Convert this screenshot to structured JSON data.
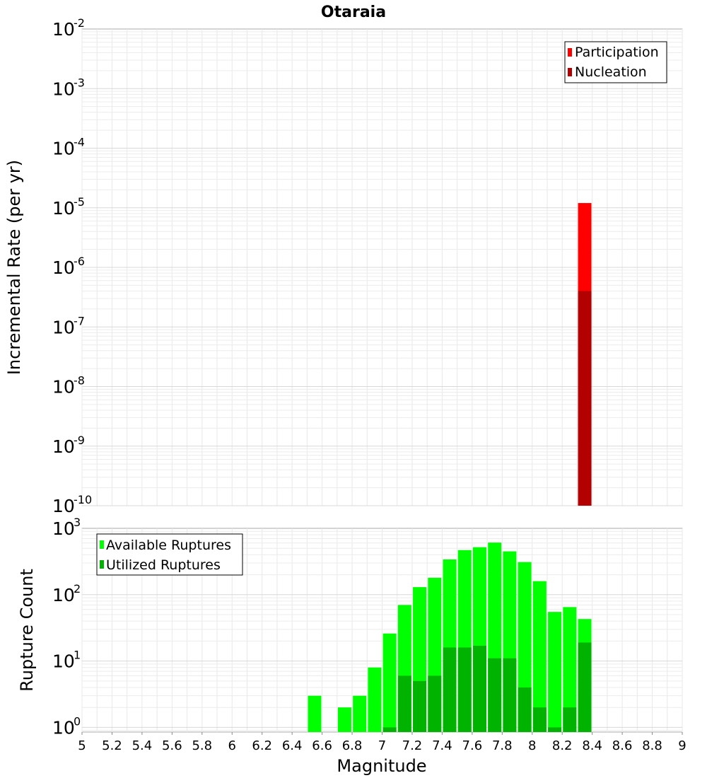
{
  "title": "Otaraia",
  "xlabel": "Magnitude",
  "x_ticks": [
    "5",
    "5.2",
    "5.4",
    "5.6",
    "5.8",
    "6",
    "6.2",
    "6.4",
    "6.6",
    "6.8",
    "7",
    "7.2",
    "7.4",
    "7.6",
    "7.8",
    "8",
    "8.2",
    "8.4",
    "8.6",
    "8.8",
    "9"
  ],
  "colors": {
    "participation": "#ff0000",
    "nucleation": "#b30000",
    "available": "#00ff00",
    "utilized": "#00b300"
  },
  "chart_data": [
    {
      "type": "bar",
      "scale": "log",
      "ylabel": "Incremental Rate (per yr)",
      "xlim": [
        5,
        9
      ],
      "ylim_exp": [
        -10,
        -2
      ],
      "y_ticks": [
        {
          "base": "10",
          "exp": "-2",
          "value_exp": -2
        },
        {
          "base": "10",
          "exp": "-3",
          "value_exp": -3
        },
        {
          "base": "10",
          "exp": "-4",
          "value_exp": -4
        },
        {
          "base": "10",
          "exp": "-5",
          "value_exp": -5
        },
        {
          "base": "10",
          "exp": "-6",
          "value_exp": -6
        },
        {
          "base": "10",
          "exp": "-7",
          "value_exp": -7
        },
        {
          "base": "10",
          "exp": "-8",
          "value_exp": -8
        },
        {
          "base": "10",
          "exp": "-9",
          "value_exp": -9
        },
        {
          "base": "10",
          "exp": "-10",
          "value_exp": -10
        }
      ],
      "legend_position": "top-right",
      "series": [
        {
          "name": "Participation",
          "color_key": "participation",
          "points": [
            {
              "x": 8.35,
              "y": 1.2e-05
            }
          ]
        },
        {
          "name": "Nucleation",
          "color_key": "nucleation",
          "points": [
            {
              "x": 8.35,
              "y": 4e-07
            }
          ]
        }
      ]
    },
    {
      "type": "bar",
      "scale": "log",
      "ylabel": "Rupture Count",
      "xlim": [
        5,
        9
      ],
      "ylim_exp": [
        0,
        3
      ],
      "y_ticks": [
        {
          "base": "10",
          "exp": "3",
          "value_exp": 3
        },
        {
          "base": "10",
          "exp": "2",
          "value_exp": 2
        },
        {
          "base": "10",
          "exp": "1",
          "value_exp": 1
        },
        {
          "base": "10",
          "exp": "0",
          "value_exp": 0
        }
      ],
      "legend_position": "top-left",
      "series": [
        {
          "name": "Available Ruptures",
          "color_key": "available",
          "points": [
            {
              "x": 6.55,
              "y": 3
            },
            {
              "x": 6.75,
              "y": 2
            },
            {
              "x": 6.85,
              "y": 3
            },
            {
              "x": 6.95,
              "y": 8
            },
            {
              "x": 7.05,
              "y": 26
            },
            {
              "x": 7.15,
              "y": 70
            },
            {
              "x": 7.25,
              "y": 130
            },
            {
              "x": 7.35,
              "y": 180
            },
            {
              "x": 7.45,
              "y": 340
            },
            {
              "x": 7.55,
              "y": 470
            },
            {
              "x": 7.65,
              "y": 520
            },
            {
              "x": 7.75,
              "y": 610
            },
            {
              "x": 7.85,
              "y": 450
            },
            {
              "x": 7.95,
              "y": 310
            },
            {
              "x": 8.05,
              "y": 160
            },
            {
              "x": 8.15,
              "y": 55
            },
            {
              "x": 8.25,
              "y": 65
            },
            {
              "x": 8.35,
              "y": 43
            }
          ]
        },
        {
          "name": "Utilized Ruptures",
          "color_key": "utilized",
          "points": [
            {
              "x": 7.05,
              "y": 1
            },
            {
              "x": 7.15,
              "y": 6
            },
            {
              "x": 7.25,
              "y": 5
            },
            {
              "x": 7.35,
              "y": 6
            },
            {
              "x": 7.45,
              "y": 16
            },
            {
              "x": 7.55,
              "y": 16
            },
            {
              "x": 7.65,
              "y": 17
            },
            {
              "x": 7.75,
              "y": 11
            },
            {
              "x": 7.85,
              "y": 11
            },
            {
              "x": 7.95,
              "y": 4
            },
            {
              "x": 8.05,
              "y": 2
            },
            {
              "x": 8.15,
              "y": 1
            },
            {
              "x": 8.25,
              "y": 2
            },
            {
              "x": 8.35,
              "y": 19
            }
          ]
        }
      ]
    }
  ]
}
